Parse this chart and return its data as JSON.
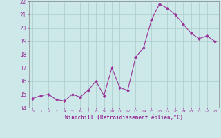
{
  "x": [
    0,
    1,
    2,
    3,
    4,
    5,
    6,
    7,
    8,
    9,
    10,
    11,
    12,
    13,
    14,
    15,
    16,
    17,
    18,
    19,
    20,
    21,
    22,
    23
  ],
  "y": [
    14.7,
    14.9,
    15.0,
    14.6,
    14.5,
    15.0,
    14.8,
    15.3,
    16.0,
    14.9,
    17.0,
    15.5,
    15.3,
    17.8,
    18.5,
    20.6,
    21.8,
    21.5,
    21.0,
    20.3,
    19.6,
    19.2,
    19.4,
    19.0
  ],
  "line_color": "#993399",
  "marker": "D",
  "marker_size": 2,
  "bg_color": "#cce8e8",
  "grid_color": "#aacccc",
  "tick_color": "#993399",
  "label_color": "#993399",
  "xlabel": "Windchill (Refroidissement éolien,°C)",
  "ylim": [
    14,
    22
  ],
  "yticks": [
    14,
    15,
    16,
    17,
    18,
    19,
    20,
    21,
    22
  ],
  "xticks": [
    0,
    1,
    2,
    3,
    4,
    5,
    6,
    7,
    8,
    9,
    10,
    11,
    12,
    13,
    14,
    15,
    16,
    17,
    18,
    19,
    20,
    21,
    22,
    23
  ]
}
